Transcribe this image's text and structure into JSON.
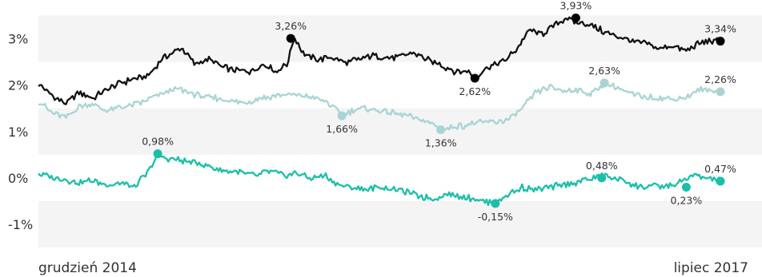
{
  "chart_data": {
    "type": "line",
    "x_start_label": "grudzień 2014",
    "x_end_label": "lipiec 2017",
    "y_ticks": [
      "3%",
      "2%",
      "1%",
      "0%",
      "-1%"
    ],
    "y_tick_values": [
      3,
      2,
      1,
      0,
      -1
    ],
    "ylim": [
      -1.5,
      3.7
    ],
    "grid": "alternating horizontal bands",
    "series": [
      {
        "color": "#111111",
        "marker_color": "#000000",
        "points": [
          [
            0.0,
            2.03
          ],
          [
            0.02,
            1.78
          ],
          [
            0.04,
            1.6
          ],
          [
            0.06,
            1.85
          ],
          [
            0.08,
            1.72
          ],
          [
            0.1,
            1.9
          ],
          [
            0.12,
            2.05
          ],
          [
            0.14,
            2.12
          ],
          [
            0.16,
            2.2
          ],
          [
            0.18,
            2.55
          ],
          [
            0.2,
            2.72
          ],
          [
            0.21,
            2.8
          ],
          [
            0.23,
            2.45
          ],
          [
            0.25,
            2.55
          ],
          [
            0.27,
            2.4
          ],
          [
            0.29,
            2.32
          ],
          [
            0.31,
            2.3
          ],
          [
            0.33,
            2.45
          ],
          [
            0.35,
            2.3
          ],
          [
            0.365,
            2.45
          ],
          [
            0.375,
            3.05
          ],
          [
            0.39,
            2.65
          ],
          [
            0.41,
            2.55
          ],
          [
            0.43,
            2.6
          ],
          [
            0.45,
            2.5
          ],
          [
            0.47,
            2.55
          ],
          [
            0.49,
            2.65
          ],
          [
            0.51,
            2.58
          ],
          [
            0.53,
            2.62
          ],
          [
            0.55,
            2.7
          ],
          [
            0.57,
            2.55
          ],
          [
            0.59,
            2.45
          ],
          [
            0.61,
            2.3
          ],
          [
            0.63,
            2.3
          ],
          [
            0.64,
            2.15
          ],
          [
            0.66,
            2.4
          ],
          [
            0.68,
            2.5
          ],
          [
            0.7,
            2.75
          ],
          [
            0.72,
            3.2
          ],
          [
            0.74,
            3.1
          ],
          [
            0.76,
            3.35
          ],
          [
            0.775,
            3.45
          ],
          [
            0.79,
            3.35
          ],
          [
            0.81,
            3.3
          ],
          [
            0.83,
            3.15
          ],
          [
            0.85,
            3.05
          ],
          [
            0.87,
            2.95
          ],
          [
            0.89,
            2.9
          ],
          [
            0.91,
            2.8
          ],
          [
            0.93,
            2.85
          ],
          [
            0.95,
            2.75
          ],
          [
            0.97,
            2.9
          ],
          [
            0.985,
            2.95
          ],
          [
            1.0,
            2.95
          ]
        ]
      },
      {
        "color": "#a9d4d4",
        "marker_color": "#a9d4d4",
        "points": [
          [
            0.0,
            1.65
          ],
          [
            0.02,
            1.4
          ],
          [
            0.04,
            1.3
          ],
          [
            0.06,
            1.55
          ],
          [
            0.08,
            1.6
          ],
          [
            0.1,
            1.45
          ],
          [
            0.12,
            1.52
          ],
          [
            0.14,
            1.58
          ],
          [
            0.16,
            1.68
          ],
          [
            0.18,
            1.8
          ],
          [
            0.2,
            1.92
          ],
          [
            0.22,
            1.85
          ],
          [
            0.24,
            1.75
          ],
          [
            0.26,
            1.72
          ],
          [
            0.28,
            1.68
          ],
          [
            0.3,
            1.62
          ],
          [
            0.32,
            1.7
          ],
          [
            0.34,
            1.75
          ],
          [
            0.36,
            1.8
          ],
          [
            0.38,
            1.78
          ],
          [
            0.4,
            1.75
          ],
          [
            0.42,
            1.65
          ],
          [
            0.44,
            1.45
          ],
          [
            0.445,
            1.34
          ],
          [
            0.46,
            1.45
          ],
          [
            0.48,
            1.5
          ],
          [
            0.5,
            1.45
          ],
          [
            0.52,
            1.4
          ],
          [
            0.54,
            1.35
          ],
          [
            0.56,
            1.25
          ],
          [
            0.58,
            1.15
          ],
          [
            0.59,
            1.04
          ],
          [
            0.61,
            1.1
          ],
          [
            0.63,
            1.15
          ],
          [
            0.65,
            1.2
          ],
          [
            0.67,
            1.2
          ],
          [
            0.69,
            1.25
          ],
          [
            0.71,
            1.5
          ],
          [
            0.73,
            1.85
          ],
          [
            0.75,
            1.95
          ],
          [
            0.77,
            1.88
          ],
          [
            0.79,
            1.9
          ],
          [
            0.81,
            1.8
          ],
          [
            0.83,
            2.05
          ],
          [
            0.85,
            1.95
          ],
          [
            0.87,
            1.8
          ],
          [
            0.89,
            1.75
          ],
          [
            0.91,
            1.72
          ],
          [
            0.93,
            1.7
          ],
          [
            0.95,
            1.75
          ],
          [
            0.97,
            1.9
          ],
          [
            0.985,
            1.88
          ],
          [
            1.0,
            1.86
          ]
        ]
      },
      {
        "color": "#1bbfa8",
        "marker_color": "#1bbfa8",
        "points": [
          [
            0.0,
            0.1
          ],
          [
            0.02,
            0.0
          ],
          [
            0.04,
            -0.05
          ],
          [
            0.06,
            -0.1
          ],
          [
            0.08,
            -0.05
          ],
          [
            0.1,
            -0.15
          ],
          [
            0.12,
            -0.1
          ],
          [
            0.14,
            -0.2
          ],
          [
            0.16,
            0.1
          ],
          [
            0.175,
            0.5
          ],
          [
            0.19,
            0.4
          ],
          [
            0.2,
            0.4
          ],
          [
            0.22,
            0.35
          ],
          [
            0.24,
            0.3
          ],
          [
            0.26,
            0.2
          ],
          [
            0.28,
            0.15
          ],
          [
            0.3,
            0.1
          ],
          [
            0.32,
            0.05
          ],
          [
            0.34,
            0.15
          ],
          [
            0.36,
            0.05
          ],
          [
            0.38,
            0.1
          ],
          [
            0.4,
            0.0
          ],
          [
            0.42,
            0.05
          ],
          [
            0.44,
            -0.15
          ],
          [
            0.46,
            -0.2
          ],
          [
            0.48,
            -0.25
          ],
          [
            0.5,
            -0.2
          ],
          [
            0.52,
            -0.25
          ],
          [
            0.54,
            -0.3
          ],
          [
            0.56,
            -0.4
          ],
          [
            0.58,
            -0.45
          ],
          [
            0.6,
            -0.35
          ],
          [
            0.62,
            -0.4
          ],
          [
            0.64,
            -0.45
          ],
          [
            0.67,
            -0.55
          ],
          [
            0.69,
            -0.35
          ],
          [
            0.71,
            -0.2
          ],
          [
            0.73,
            -0.25
          ],
          [
            0.75,
            -0.2
          ],
          [
            0.77,
            -0.15
          ],
          [
            0.79,
            -0.1
          ],
          [
            0.81,
            0.0
          ],
          [
            0.83,
            0.05
          ],
          [
            0.845,
            0.0
          ],
          [
            0.86,
            -0.05
          ],
          [
            0.88,
            -0.2
          ],
          [
            0.9,
            -0.15
          ],
          [
            0.92,
            -0.2
          ],
          [
            0.94,
            -0.1
          ],
          [
            0.96,
            0.05
          ],
          [
            0.98,
            0.0
          ],
          [
            1.0,
            -0.07
          ]
        ]
      }
    ],
    "point_labels": [
      {
        "series": 0,
        "x": 0.37,
        "y": 3.01,
        "text": "3,26%",
        "pos": "above"
      },
      {
        "series": 0,
        "x": 0.64,
        "y": 2.15,
        "text": "2,62%",
        "pos": "below"
      },
      {
        "series": 0,
        "x": 0.788,
        "y": 3.45,
        "text": "3,93%",
        "pos": "above"
      },
      {
        "series": 0,
        "x": 1.0,
        "y": 2.95,
        "text": "3,34%",
        "pos": "above"
      },
      {
        "series": 1,
        "x": 0.445,
        "y": 1.34,
        "text": "1,66%",
        "pos": "below"
      },
      {
        "series": 1,
        "x": 0.59,
        "y": 1.04,
        "text": "1,36%",
        "pos": "below"
      },
      {
        "series": 1,
        "x": 0.83,
        "y": 2.05,
        "text": "2,63%",
        "pos": "above"
      },
      {
        "series": 1,
        "x": 1.0,
        "y": 1.86,
        "text": "2,26%",
        "pos": "above"
      },
      {
        "series": 2,
        "x": 0.175,
        "y": 0.52,
        "text": "0,98%",
        "pos": "above"
      },
      {
        "series": 2,
        "x": 0.67,
        "y": -0.55,
        "text": "-0,15%",
        "pos": "below"
      },
      {
        "series": 2,
        "x": 0.826,
        "y": 0.0,
        "text": "0,48%",
        "pos": "above"
      },
      {
        "series": 2,
        "x": 0.95,
        "y": -0.2,
        "text": "0,23%",
        "pos": "below"
      },
      {
        "series": 2,
        "x": 1.0,
        "y": -0.07,
        "text": "0,47%",
        "pos": "above"
      }
    ]
  }
}
